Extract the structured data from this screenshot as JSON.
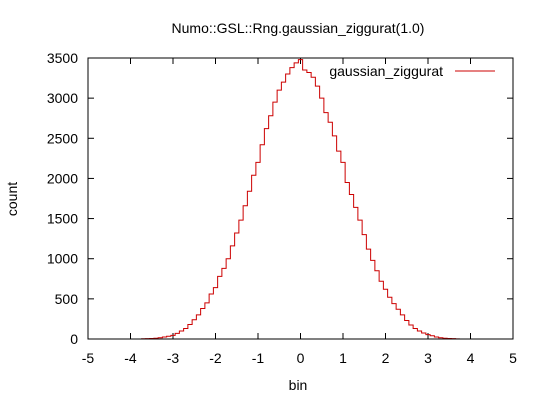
{
  "chart_data": {
    "type": "line",
    "title": "Numo::GSL::Rng.gaussian_ziggurat(1.0)",
    "xlabel": "bin",
    "ylabel": "count",
    "xlim": [
      -5,
      5
    ],
    "ylim": [
      0,
      3500
    ],
    "xticks": [
      "-5",
      "-4",
      "-3",
      "-2",
      "-1",
      "0",
      "1",
      "2",
      "3",
      "4",
      "5"
    ],
    "yticks": [
      "0",
      "500",
      "1000",
      "1500",
      "2000",
      "2500",
      "3000",
      "3500"
    ],
    "legend_position": "top-right",
    "grid": false,
    "series_color": "#cc0000",
    "series": [
      {
        "name": "gaussian_ziggurat",
        "x": [
          -3.7,
          -3.6,
          -3.5,
          -3.4,
          -3.3,
          -3.2,
          -3.1,
          -3.0,
          -2.9,
          -2.8,
          -2.7,
          -2.6,
          -2.5,
          -2.4,
          -2.3,
          -2.2,
          -2.1,
          -2.0,
          -1.9,
          -1.8,
          -1.7,
          -1.6,
          -1.5,
          -1.4,
          -1.3,
          -1.2,
          -1.1,
          -1.0,
          -0.9,
          -0.8,
          -0.7,
          -0.6,
          -0.5,
          -0.4,
          -0.3,
          -0.2,
          -0.1,
          0.0,
          0.1,
          0.2,
          0.3,
          0.4,
          0.5,
          0.6,
          0.7,
          0.8,
          0.9,
          1.0,
          1.1,
          1.2,
          1.3,
          1.4,
          1.5,
          1.6,
          1.7,
          1.8,
          1.9,
          2.0,
          2.1,
          2.2,
          2.3,
          2.4,
          2.5,
          2.6,
          2.7,
          2.8,
          2.9,
          3.0,
          3.1,
          3.2,
          3.3,
          3.4,
          3.5,
          3.6,
          3.7
        ],
        "values": [
          3,
          5,
          7,
          10,
          15,
          25,
          35,
          45,
          70,
          100,
          130,
          180,
          240,
          300,
          380,
          450,
          560,
          640,
          780,
          880,
          1000,
          1160,
          1320,
          1480,
          1660,
          1840,
          2040,
          2200,
          2420,
          2620,
          2780,
          2950,
          3100,
          3200,
          3300,
          3380,
          3440,
          3480,
          3350,
          3320,
          3260,
          3150,
          3000,
          2820,
          2700,
          2530,
          2340,
          2200,
          1950,
          1800,
          1640,
          1480,
          1300,
          1120,
          980,
          850,
          720,
          620,
          520,
          440,
          370,
          300,
          230,
          175,
          130,
          100,
          75,
          55,
          40,
          25,
          15,
          10,
          6,
          4,
          2
        ]
      }
    ]
  }
}
